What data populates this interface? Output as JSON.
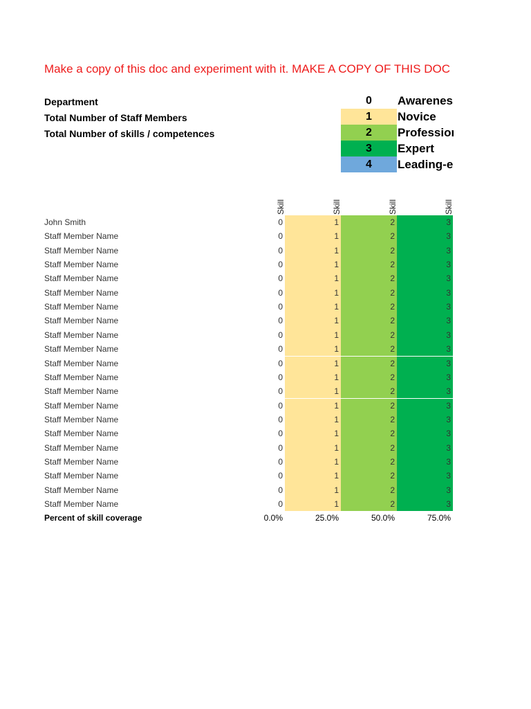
{
  "banner": "Make a copy of this doc and experiment with it. MAKE A COPY OF THIS DOC",
  "info": {
    "department": "Department",
    "staff_total": "Total Number of Staff Members",
    "skills_total": "Total Number of skills / competences"
  },
  "legend": [
    {
      "num": "0",
      "label": "Awareness",
      "color": "#ffffff"
    },
    {
      "num": "1",
      "label": "Novice",
      "color": "#ffe599"
    },
    {
      "num": "2",
      "label": "Professional",
      "color": "#92d050"
    },
    {
      "num": "3",
      "label": "Expert",
      "color": "#00b050"
    },
    {
      "num": "4",
      "label": "Leading-edge",
      "color": "#6fa8dc"
    }
  ],
  "columns": [
    "Skill",
    "Skill",
    "Skill",
    "Skill"
  ],
  "column_colors": [
    "#ffffff",
    "#ffe599",
    "#92d050",
    "#00b050"
  ],
  "rows": [
    {
      "name": "John Smith",
      "values": [
        "0",
        "1",
        "2",
        "3"
      ]
    },
    {
      "name": "Staff Member Name",
      "values": [
        "0",
        "1",
        "2",
        "3"
      ]
    },
    {
      "name": "Staff Member Name",
      "values": [
        "0",
        "1",
        "2",
        "3"
      ]
    },
    {
      "name": "Staff Member Name",
      "values": [
        "0",
        "1",
        "2",
        "3"
      ]
    },
    {
      "name": "Staff Member Name",
      "values": [
        "0",
        "1",
        "2",
        "3"
      ]
    },
    {
      "name": "Staff Member Name",
      "values": [
        "0",
        "1",
        "2",
        "3"
      ]
    },
    {
      "name": "Staff Member Name",
      "values": [
        "0",
        "1",
        "2",
        "3"
      ]
    },
    {
      "name": "Staff Member Name",
      "values": [
        "0",
        "1",
        "2",
        "3"
      ]
    },
    {
      "name": "Staff Member Name",
      "values": [
        "0",
        "1",
        "2",
        "3"
      ]
    },
    {
      "name": "Staff Member Name",
      "values": [
        "0",
        "1",
        "2",
        "3"
      ]
    },
    {
      "name": "Staff Member Name",
      "values": [
        "0",
        "1",
        "2",
        "3"
      ]
    },
    {
      "name": "Staff Member Name",
      "values": [
        "0",
        "1",
        "2",
        "3"
      ]
    },
    {
      "name": "Staff Member Name",
      "values": [
        "0",
        "1",
        "2",
        "3"
      ]
    },
    {
      "name": "Staff Member Name",
      "values": [
        "0",
        "1",
        "2",
        "3"
      ]
    },
    {
      "name": "Staff Member Name",
      "values": [
        "0",
        "1",
        "2",
        "3"
      ]
    },
    {
      "name": "Staff Member Name",
      "values": [
        "0",
        "1",
        "2",
        "3"
      ]
    },
    {
      "name": "Staff Member Name",
      "values": [
        "0",
        "1",
        "2",
        "3"
      ]
    },
    {
      "name": "Staff Member Name",
      "values": [
        "0",
        "1",
        "2",
        "3"
      ]
    },
    {
      "name": "Staff Member Name",
      "values": [
        "0",
        "1",
        "2",
        "3"
      ]
    },
    {
      "name": "Staff Member Name",
      "values": [
        "0",
        "1",
        "2",
        "3"
      ]
    },
    {
      "name": "Staff Member Name",
      "values": [
        "0",
        "1",
        "2",
        "3"
      ]
    }
  ],
  "footer": {
    "label": "Percent of skill coverage",
    "values": [
      "0.0%",
      "25.0%",
      "50.0%",
      "75.0%"
    ]
  }
}
